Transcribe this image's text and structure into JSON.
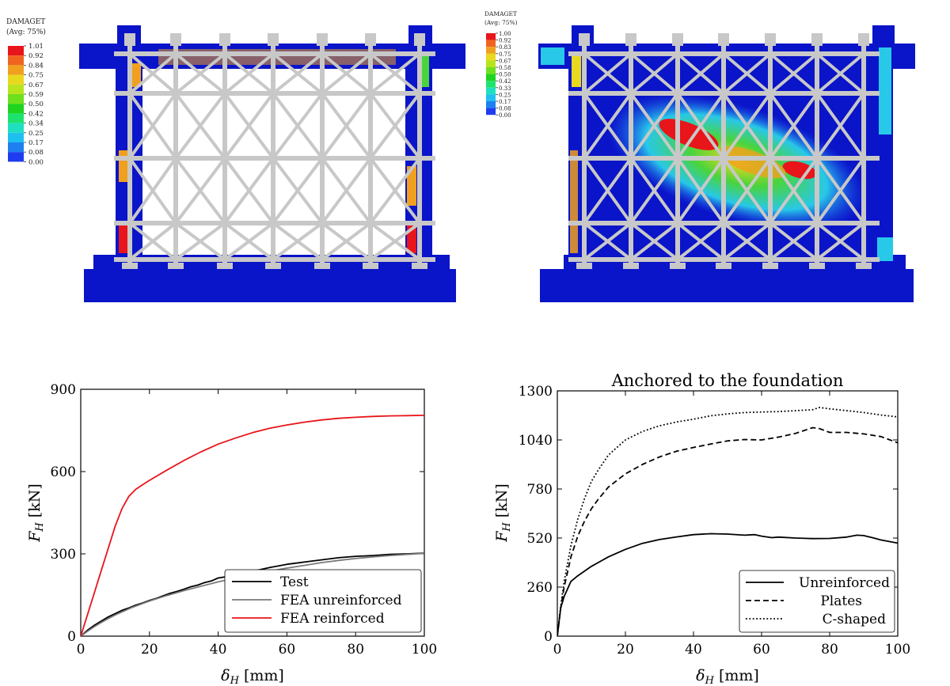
{
  "colorbar_left": {
    "title_line1": "DAMAGET",
    "title_line2": "(Avg: 75%)",
    "ticks": [
      "1.01",
      "0.92",
      "0.84",
      "0.75",
      "0.67",
      "0.59",
      "0.50",
      "0.42",
      "0.34",
      "0.25",
      "0.17",
      "0.08",
      "0.00"
    ],
    "colors": [
      "#e8151a",
      "#f06420",
      "#f0a01e",
      "#e8d81e",
      "#b8e41e",
      "#6ee01e",
      "#1ed41e",
      "#1ee26e",
      "#1ee0c0",
      "#1ec0f0",
      "#1e80f0",
      "#1e3cf0"
    ]
  },
  "colorbar_right": {
    "title_line1": "DAMAGET",
    "title_line2": "(Avg: 75%)",
    "ticks": [
      "1.00",
      "0.92",
      "0.83",
      "0.75",
      "0.67",
      "0.58",
      "0.50",
      "0.42",
      "0.33",
      "0.25",
      "0.17",
      "0.08",
      "0.00"
    ],
    "colors": [
      "#e8151a",
      "#f06420",
      "#f0a01e",
      "#e8d81e",
      "#b8e41e",
      "#6ee01e",
      "#1ed41e",
      "#1ee26e",
      "#1ee0c0",
      "#1ec0f0",
      "#1e80f0",
      "#1e3cf0"
    ]
  },
  "fe_colors": {
    "blue": "#0a14c8",
    "red": "#e8151a",
    "orange": "#f0a01e",
    "yellow": "#e8d81e",
    "green": "#4ad43c",
    "cyan": "#28c8e8",
    "mid_blue": "#1e5af0",
    "steel": "#c8c8c8"
  },
  "chart_data": [
    {
      "type": "line",
      "title": "",
      "xlabel_sym": "δ",
      "xlabel_sub": "H",
      "xlabel_unit": " [mm]",
      "ylabel_sym": "F",
      "ylabel_sub": "H",
      "ylabel_unit": " [kN]",
      "xlim": [
        0,
        100
      ],
      "ylim": [
        0,
        900
      ],
      "xticks": [
        0,
        20,
        40,
        60,
        80,
        100
      ],
      "yticks": [
        0,
        300,
        600,
        900
      ],
      "legend_position": "lower-right",
      "series": [
        {
          "name": "Test",
          "color": "#000000",
          "dash": "",
          "width": 1.8,
          "x": [
            0,
            2,
            4,
            6,
            8,
            10,
            12,
            14,
            16,
            18,
            20,
            22,
            24,
            26,
            28,
            30,
            32,
            34,
            36,
            38,
            40,
            42,
            44,
            46,
            48,
            50,
            52,
            55,
            58,
            60,
            65,
            70,
            75,
            80,
            85,
            90,
            95,
            100
          ],
          "y": [
            0,
            22,
            40,
            55,
            70,
            82,
            94,
            103,
            113,
            121,
            130,
            138,
            147,
            156,
            163,
            171,
            180,
            186,
            195,
            201,
            212,
            216,
            222,
            228,
            232,
            238,
            242,
            250,
            257,
            262,
            270,
            278,
            286,
            291,
            294,
            298,
            300,
            303
          ]
        },
        {
          "name": "FEA unreinforced",
          "color": "#7a7a7a",
          "dash": "",
          "width": 1.8,
          "x": [
            0,
            2,
            4,
            6,
            8,
            10,
            15,
            20,
            25,
            30,
            35,
            40,
            45,
            50,
            55,
            60,
            65,
            70,
            75,
            80,
            85,
            90,
            95,
            100
          ],
          "y": [
            0,
            18,
            35,
            50,
            64,
            77,
            105,
            128,
            148,
            166,
            182,
            198,
            212,
            225,
            237,
            248,
            258,
            268,
            276,
            283,
            289,
            294,
            298,
            302
          ]
        },
        {
          "name": "FEA reinforced",
          "color": "#e8151a",
          "dash": "",
          "width": 1.8,
          "x": [
            0,
            2,
            4,
            6,
            8,
            10,
            12,
            14,
            16,
            18,
            20,
            25,
            30,
            35,
            40,
            45,
            50,
            55,
            60,
            65,
            70,
            75,
            80,
            85,
            90,
            95,
            100
          ],
          "y": [
            0,
            80,
            160,
            240,
            320,
            400,
            465,
            510,
            535,
            552,
            568,
            605,
            640,
            672,
            700,
            722,
            742,
            758,
            770,
            780,
            788,
            794,
            798,
            801,
            803,
            804,
            805
          ]
        }
      ]
    },
    {
      "type": "line",
      "title": "Anchored to the foundation",
      "xlabel_sym": "δ",
      "xlabel_sub": "H",
      "xlabel_unit": " [mm]",
      "ylabel_sym": "F",
      "ylabel_sub": "H",
      "ylabel_unit": " [kN]",
      "xlim": [
        0,
        100
      ],
      "ylim": [
        0,
        1300
      ],
      "xticks": [
        0,
        20,
        40,
        60,
        80,
        100
      ],
      "yticks": [
        0,
        260,
        520,
        780,
        1040,
        1300
      ],
      "legend_position": "lower-right",
      "series": [
        {
          "name": "Unreinforced",
          "color": "#000000",
          "dash": "",
          "width": 1.8,
          "x": [
            0,
            1,
            2,
            4,
            6,
            8,
            10,
            15,
            20,
            25,
            30,
            35,
            40,
            45,
            50,
            55,
            58,
            60,
            63,
            65,
            70,
            75,
            80,
            85,
            88,
            90,
            93,
            95,
            100
          ],
          "y": [
            0,
            150,
            210,
            290,
            320,
            345,
            370,
            420,
            460,
            492,
            512,
            526,
            538,
            543,
            541,
            535,
            538,
            530,
            522,
            525,
            520,
            517,
            518,
            525,
            535,
            533,
            520,
            510,
            493
          ]
        },
        {
          "name": "Plates",
          "color": "#000000",
          "dash": "7,4",
          "width": 1.8,
          "x": [
            0,
            1,
            2,
            4,
            6,
            8,
            10,
            12,
            15,
            20,
            25,
            30,
            35,
            40,
            45,
            50,
            55,
            60,
            65,
            70,
            75,
            77,
            80,
            85,
            90,
            95,
            100
          ],
          "y": [
            0,
            150,
            260,
            420,
            530,
            610,
            675,
            725,
            790,
            860,
            910,
            950,
            980,
            1000,
            1018,
            1035,
            1042,
            1040,
            1055,
            1075,
            1105,
            1100,
            1080,
            1080,
            1072,
            1058,
            1025
          ]
        },
        {
          "name": "C-shaped",
          "color": "#000000",
          "dash": "1.8,2.6",
          "width": 1.8,
          "x": [
            0,
            1,
            2,
            4,
            6,
            8,
            10,
            12,
            15,
            20,
            25,
            30,
            35,
            40,
            45,
            50,
            55,
            60,
            65,
            70,
            75,
            77,
            80,
            85,
            90,
            95,
            100
          ],
          "y": [
            0,
            160,
            290,
            480,
            620,
            730,
            820,
            880,
            960,
            1040,
            1085,
            1115,
            1135,
            1150,
            1168,
            1178,
            1185,
            1188,
            1190,
            1195,
            1200,
            1212,
            1205,
            1195,
            1185,
            1172,
            1162
          ]
        }
      ]
    }
  ]
}
